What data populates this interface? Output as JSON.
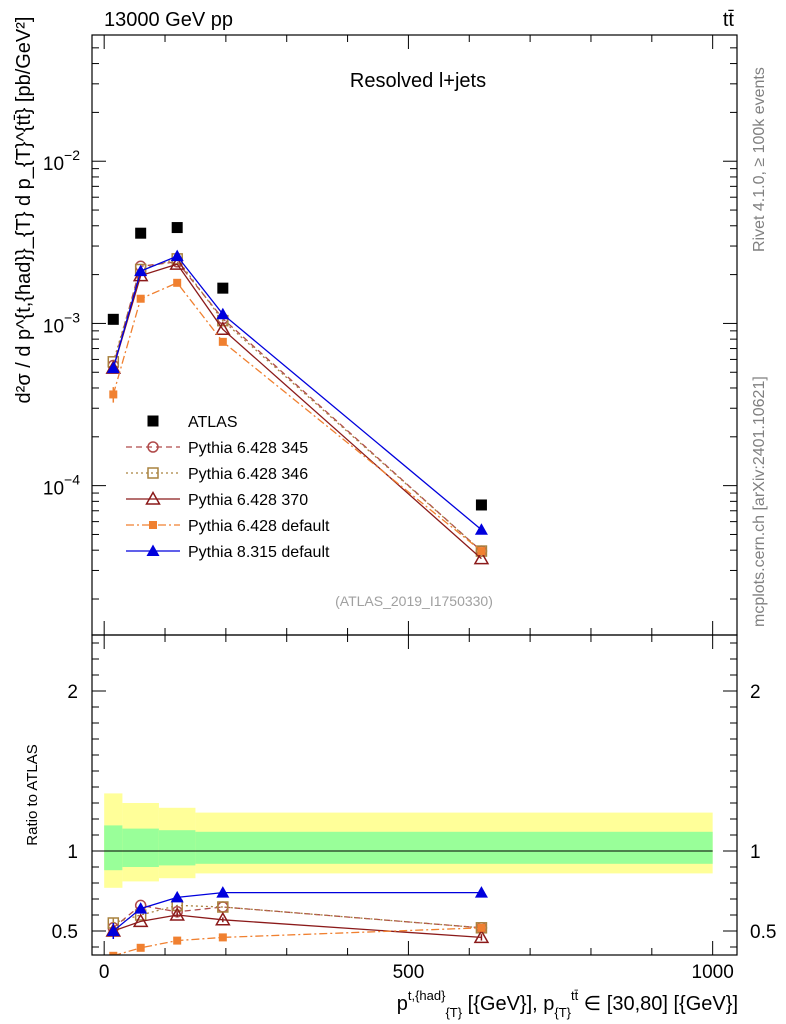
{
  "header": {
    "energy_label": "13000 GeV pp",
    "process_label": "tt̄",
    "side_rivet": "Rivet 4.1.0, ≥ 100k events",
    "side_mcplots": "mcplots.cern.ch [arXiv:2401.10621]"
  },
  "colors": {
    "ATLAS": "#000000",
    "Pythia 6.428 345": "#b04a4a",
    "Pythia 6.428 346": "#a9823f",
    "Pythia 6.428 370": "#8b1a1a",
    "Pythia 6.428 default": "#f08030",
    "Pythia 8.315 default": "#0000dd",
    "band_inner": "#99ff99",
    "band_outer": "#ffff99"
  },
  "chart_data": [
    {
      "type": "scatter",
      "panel": "main",
      "title": "Resolved l+jets",
      "watermark": "(ATLAS_2019_I1750330)",
      "ylabel": "d²σ / d p^{t,{had}}_{T} d p_{T}^{tt̄} [pb/GeV²]",
      "yscale": "log",
      "xlim": [
        -20,
        1040
      ],
      "ylim": [
        1.2e-05,
        0.06
      ],
      "y_ticks": [
        {
          "value": 0.0001,
          "mant": "10",
          "exp": "−4"
        },
        {
          "value": 0.001,
          "mant": "10",
          "exp": "−3"
        },
        {
          "value": 0.01,
          "mant": "10",
          "exp": "−2"
        }
      ],
      "legend_position": "left",
      "x": [
        15,
        60,
        120,
        195,
        620
      ],
      "series": [
        {
          "name": "ATLAS",
          "marker": "filled-square",
          "dash": "none",
          "showline": false,
          "values": [
            0.00106,
            0.0036,
            0.0039,
            0.00165,
            7.6e-05
          ],
          "errors": [
            0,
            0,
            0,
            0,
            0
          ]
        },
        {
          "name": "Pythia 6.428 345",
          "marker": "open-circle",
          "dash": "6,4",
          "showline": true,
          "values": [
            0.00055,
            0.00225,
            0.0024,
            0.00107,
            3.95e-05
          ],
          "errors": [
            0,
            0,
            0,
            0,
            0
          ]
        },
        {
          "name": "Pythia 6.428 346",
          "marker": "open-square",
          "dash": "2,3",
          "showline": true,
          "values": [
            0.00058,
            0.00215,
            0.0025,
            0.00104,
            3.95e-05
          ],
          "errors": [
            0,
            0,
            0,
            0,
            0
          ]
        },
        {
          "name": "Pythia 6.428 370",
          "marker": "open-triangle",
          "dash": "none",
          "showline": true,
          "values": [
            0.00053,
            0.00197,
            0.00232,
            0.00092,
            3.55e-05
          ],
          "errors": [
            0,
            0,
            0,
            0,
            0
          ]
        },
        {
          "name": "Pythia 6.428 default",
          "marker": "small-filled-square",
          "dash": "8,3,2,3",
          "showline": true,
          "values": [
            0.000365,
            0.00142,
            0.00178,
            0.00077,
            3.95e-05
          ],
          "errors": [
            4e-05,
            0,
            0,
            0,
            0
          ]
        },
        {
          "name": "Pythia 8.315 default",
          "marker": "filled-triangle",
          "dash": "none",
          "showline": true,
          "values": [
            0.00053,
            0.0021,
            0.0026,
            0.00114,
            5.35e-05
          ],
          "errors": [
            0,
            0,
            0,
            0,
            0
          ]
        }
      ]
    },
    {
      "type": "scatter",
      "panel": "ratio",
      "ylabel": "Ratio to ATLAS",
      "xlabel": "p^{t,{had}}_{T} [{GeV}], p_{T}^{tt̄} ∈ [30,80] [{GeV}]",
      "xlabel_parts": {
        "p": "p",
        "sup1": "t,{had}",
        "sub1": "{T}",
        "mid": " [{GeV}], p",
        "sub2": "{T}",
        "sup2": "tt̄",
        "tail": " ∈ [30,80] [{GeV}]"
      },
      "xlim": [
        -20,
        1040
      ],
      "ylim": [
        0.35,
        2.35
      ],
      "x_ticks": [
        0,
        500,
        1000
      ],
      "x_tick_labels": [
        "0",
        "500",
        "1000"
      ],
      "y_ticks": [
        0.5,
        1,
        2
      ],
      "y_tick_labels": [
        "0.5",
        "1",
        "2"
      ],
      "reference_line": 1,
      "bands": {
        "edges": [
          0,
          30,
          90,
          150,
          1000
        ],
        "inner": [
          [
            0.88,
            1.16
          ],
          [
            0.9,
            1.14
          ],
          [
            0.91,
            1.13
          ],
          [
            0.92,
            1.12
          ]
        ],
        "outer": [
          [
            0.77,
            1.36
          ],
          [
            0.81,
            1.3
          ],
          [
            0.83,
            1.27
          ],
          [
            0.86,
            1.24
          ]
        ]
      },
      "x": [
        15,
        60,
        120,
        195,
        620
      ],
      "series": [
        {
          "name": "Pythia 6.428 345",
          "values": [
            0.52,
            0.66,
            0.62,
            0.65,
            0.52
          ],
          "errors": [
            0.03,
            0,
            0.015,
            0,
            0.015
          ]
        },
        {
          "name": "Pythia 6.428 346",
          "values": [
            0.55,
            0.6,
            0.66,
            0.65,
            0.52
          ],
          "errors": [
            0.03,
            0,
            0,
            0,
            0
          ]
        },
        {
          "name": "Pythia 6.428 370",
          "values": [
            0.5,
            0.56,
            0.6,
            0.57,
            0.46
          ],
          "errors": [
            0.03,
            0,
            0.015,
            0.015,
            0.02
          ]
        },
        {
          "name": "Pythia 6.428 default",
          "values": [
            0.345,
            0.395,
            0.44,
            0.46,
            0.52
          ],
          "errors": [
            0,
            0,
            0.015,
            0.015,
            0.02
          ]
        },
        {
          "name": "Pythia 8.315 default",
          "values": [
            0.5,
            0.64,
            0.71,
            0.74,
            0.74
          ],
          "errors": [
            0.05,
            0.02,
            0.02,
            0.02,
            0.03
          ]
        }
      ]
    }
  ]
}
